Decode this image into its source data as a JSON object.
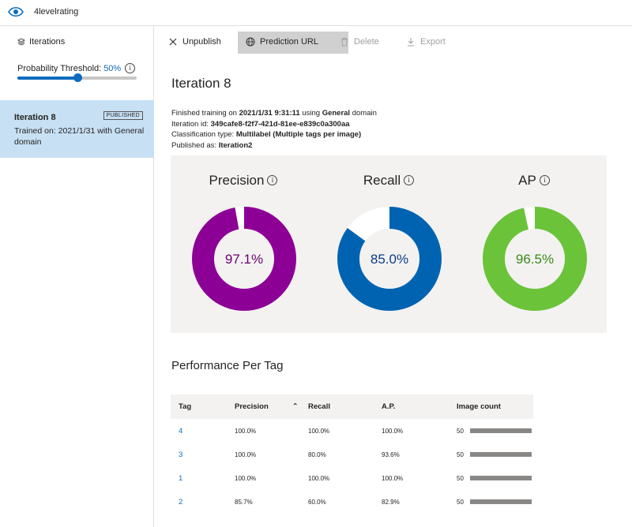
{
  "topbar": {
    "project_name": "4levelrating"
  },
  "sidebar": {
    "header": "Iterations",
    "threshold_label": "Probability Threshold:",
    "threshold_value": "50%",
    "threshold_fraction": 0.5,
    "iteration": {
      "name": "Iteration 8",
      "badge": "PUBLISHED",
      "desc": "Trained on: 2021/1/31 with General domain"
    }
  },
  "toolbar": {
    "unpublish": "Unpublish",
    "prediction_url": "Prediction URL",
    "delete": "Delete",
    "export": "Export"
  },
  "main": {
    "title": "Iteration 8",
    "finished_prefix": "Finished training on ",
    "finished_date": "2021/1/31 9:31:11",
    "finished_mid": " using ",
    "finished_domain": "General",
    "finished_suffix": " domain",
    "iter_id_label": "Iteration id: ",
    "iter_id": "349cafe8-f2f7-421d-81ee-e839c0a300aa",
    "class_label": "Classification type: ",
    "class_value": "Multilabel (Multiple tags per image)",
    "published_label": "Published as: ",
    "published_value": "Iteration2"
  },
  "metrics": [
    {
      "label": "Precision",
      "display": "97.1%",
      "value": 0.971,
      "color": "#8c0095",
      "text_color": "#6b006f"
    },
    {
      "label": "Recall",
      "display": "85.0%",
      "value": 0.85,
      "color": "#0063b1",
      "text_color": "#0b3d82"
    },
    {
      "label": "AP",
      "display": "96.5%",
      "value": 0.965,
      "color": "#6bc33a",
      "text_color": "#3c8a16"
    }
  ],
  "perf": {
    "title": "Performance Per Tag",
    "headers": {
      "tag": "Tag",
      "precision": "Precision",
      "recall": "Recall",
      "ap": "A.P.",
      "count": "Image count"
    },
    "rows": [
      {
        "tag": "4",
        "precision": "100.0%",
        "recall": "100.0%",
        "ap": "100.0%",
        "count": "50"
      },
      {
        "tag": "3",
        "precision": "100.0%",
        "recall": "80.0%",
        "ap": "93.6%",
        "count": "50"
      },
      {
        "tag": "1",
        "precision": "100.0%",
        "recall": "100.0%",
        "ap": "100.0%",
        "count": "50"
      },
      {
        "tag": "2",
        "precision": "85.7%",
        "recall": "60.0%",
        "ap": "82.9%",
        "count": "50"
      }
    ]
  }
}
